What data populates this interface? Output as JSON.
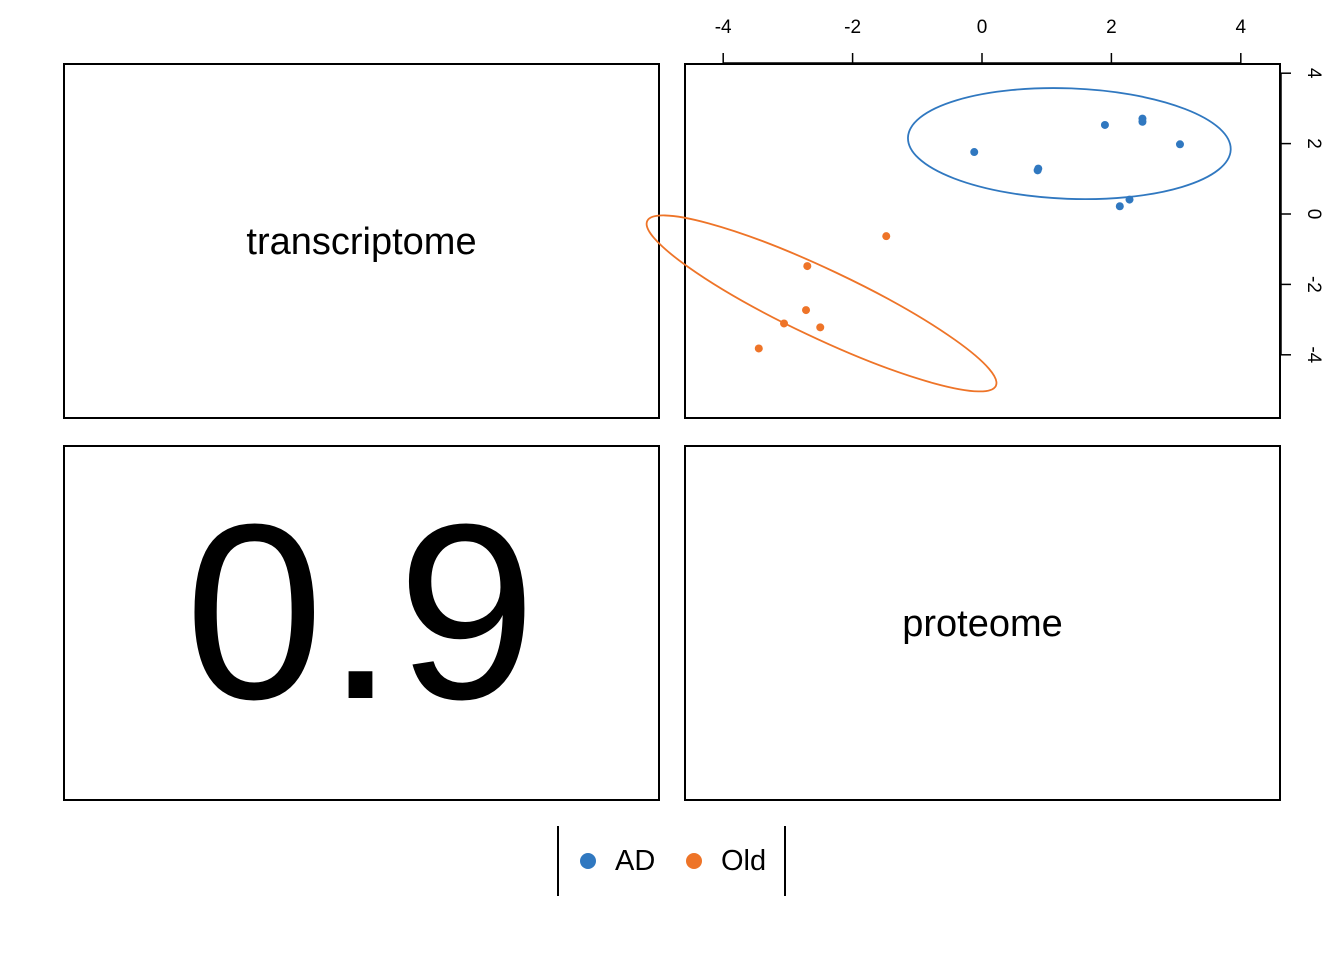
{
  "diagonal": {
    "top_left_label": "transcriptome",
    "bottom_right_label": "proteome"
  },
  "correlation": {
    "value_text": "0.9"
  },
  "legend": {
    "items": [
      {
        "label": "AD",
        "color": "#3078c0"
      },
      {
        "label": "Old",
        "color": "#ee7428"
      }
    ]
  },
  "chart_data": {
    "type": "scatter",
    "title": "",
    "xlabel": "",
    "ylabel": "",
    "xlim": [
      -4.6,
      4.6
    ],
    "ylim": [
      -5.8,
      4.3
    ],
    "x_ticks": [
      -4,
      -2,
      0,
      2,
      4
    ],
    "y_ticks": [
      -4,
      -2,
      0,
      2,
      4
    ],
    "x_tick_labels": [
      "-4",
      "-2",
      "0",
      "2",
      "4"
    ],
    "y_tick_labels": [
      "-4",
      "-2",
      "0",
      "2",
      "4"
    ],
    "x_axis_position": "top",
    "y_axis_position": "right",
    "grid": false,
    "legend_position": "bottom-center",
    "series": [
      {
        "name": "AD",
        "color": "#3078c0",
        "points": [
          {
            "x": -0.12,
            "y": 1.76
          },
          {
            "x": 0.87,
            "y": 1.29
          },
          {
            "x": 0.86,
            "y": 1.24
          },
          {
            "x": 1.9,
            "y": 2.53
          },
          {
            "x": 2.48,
            "y": 2.71
          },
          {
            "x": 2.48,
            "y": 2.62
          },
          {
            "x": 3.06,
            "y": 1.98
          },
          {
            "x": 2.28,
            "y": 0.41
          },
          {
            "x": 2.13,
            "y": 0.22
          }
        ],
        "ellipse": {
          "cx": 1.35,
          "cy": 2.0,
          "rx": 2.5,
          "ry": 1.56,
          "angle": -4
        }
      },
      {
        "name": "Old",
        "color": "#ee7428",
        "points": [
          {
            "x": -1.48,
            "y": -0.63
          },
          {
            "x": -2.7,
            "y": -1.48
          },
          {
            "x": -2.72,
            "y": -2.73
          },
          {
            "x": -3.06,
            "y": -3.11
          },
          {
            "x": -2.5,
            "y": -3.22
          },
          {
            "x": -3.45,
            "y": -3.82
          }
        ],
        "ellipse": {
          "cx": -2.48,
          "cy": -2.54,
          "rx": 3.57,
          "ry": 0.68,
          "angle": -41
        }
      }
    ]
  }
}
